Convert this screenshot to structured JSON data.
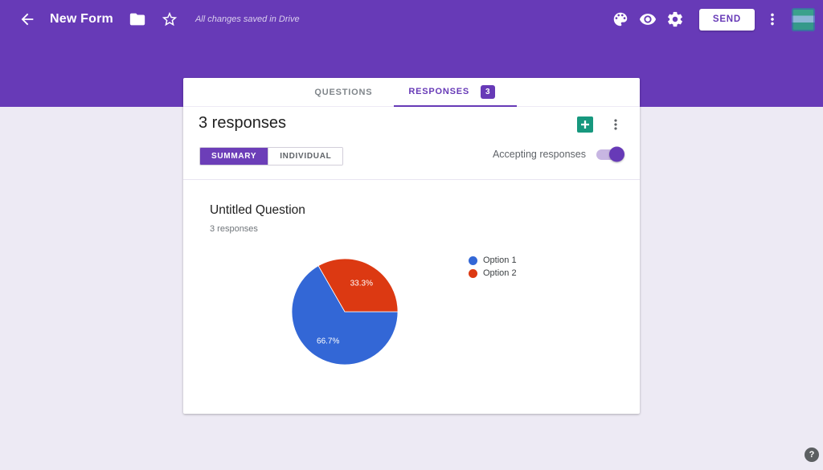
{
  "topbar": {
    "title": "New Form",
    "saved_status": "All changes saved in Drive",
    "send_label": "SEND"
  },
  "tabs": {
    "questions_label": "QUESTIONS",
    "responses_label": "RESPONSES",
    "responses_badge": "3"
  },
  "panel": {
    "heading": "3 responses",
    "summary_label": "SUMMARY",
    "individual_label": "INDIVIDUAL",
    "accepting_label": "Accepting responses",
    "accepting_on": true
  },
  "question": {
    "title": "Untitled Question",
    "responses_count": "3 responses"
  },
  "chart_data": {
    "type": "pie",
    "title": "Untitled Question",
    "labels": [
      "Option 1",
      "Option 2"
    ],
    "values": [
      66.7,
      33.3
    ],
    "display_labels": [
      "66.7%",
      "33.3%"
    ],
    "colors": [
      "#3367d6",
      "#dc3912"
    ],
    "legend_position": "right",
    "start_angle_clockwise_from_top": 90
  },
  "help_label": "?",
  "colors": {
    "primary": "#673ab7",
    "chart_blue": "#3367d6",
    "chart_red": "#dc3912",
    "sheets_green": "#17987e",
    "page_background": "#edeaf4"
  }
}
